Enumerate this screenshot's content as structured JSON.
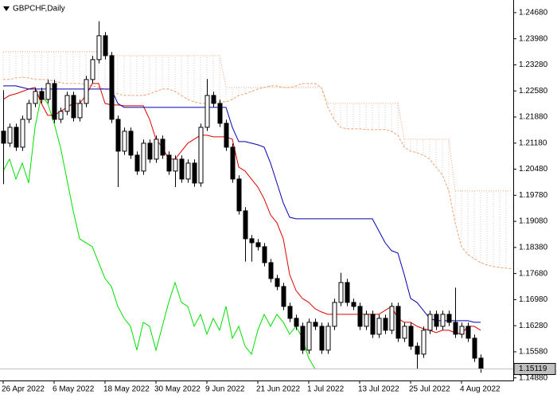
{
  "chart_data": {
    "type": "candlestick",
    "title": "GBPCHF,Daily",
    "categories": [
      "26 Apr 2022",
      null,
      null,
      null,
      null,
      null,
      null,
      null,
      "6 May 2022",
      null,
      null,
      null,
      null,
      null,
      null,
      null,
      "18 May 2022",
      null,
      null,
      null,
      null,
      null,
      null,
      null,
      "30 May 2022",
      null,
      null,
      null,
      null,
      null,
      null,
      null,
      "9 Jun 2022",
      null,
      null,
      null,
      null,
      null,
      null,
      null,
      "21 Jun 2022",
      null,
      null,
      null,
      null,
      null,
      null,
      null,
      "1 Jul 2022",
      null,
      null,
      null,
      null,
      null,
      null,
      null,
      "13 Jul 2022",
      null,
      null,
      null,
      null,
      null,
      null,
      null,
      "25 Jul 2022",
      null,
      null,
      null,
      null,
      null,
      null,
      null,
      "4 Aug 2022",
      null,
      null,
      null,
      null,
      null,
      null,
      null,
      null
    ],
    "open": [
      1.215,
      1.21177,
      1.21604,
      1.2107,
      1.21818,
      1.22245,
      1.22566,
      1.22352,
      1.22779,
      1.21818,
      1.22032,
      1.22459,
      1.21861,
      1.22245,
      1.22886,
      1.2342,
      1.24061,
      1.23527,
      1.21818,
      1.20964,
      1.21498,
      1.20857,
      1.2043,
      1.21177,
      1.2075,
      1.21284,
      1.20857,
      1.2043,
      1.2075,
      1.20216,
      1.20643,
      1.20109,
      1.21604,
      1.22459,
      1.22245,
      1.21711,
      1.2107,
      1.20216,
      1.19362,
      1.18614,
      1.18507,
      1.184,
      1.17973,
      1.17546,
      1.17332,
      1.16798,
      1.16478,
      1.16264,
      1.15624,
      1.16371,
      1.16264,
      1.15624,
      1.16264,
      1.16905,
      1.17439,
      1.16905,
      1.16798,
      1.16264,
      1.16585,
      1.16051,
      1.16478,
      1.16158,
      1.16798,
      1.15944,
      1.16264,
      1.1573,
      1.15517,
      1.16158,
      1.16585,
      1.16264,
      1.16585,
      1.16371,
      1.16051,
      1.16264,
      1.15944,
      1.1541,
      null,
      null,
      null,
      null,
      null
    ],
    "high": [
      1.226,
      1.21704,
      1.21704,
      1.21918,
      1.22345,
      1.22666,
      1.22666,
      1.22879,
      1.22879,
      1.22132,
      1.22559,
      1.22559,
      1.22345,
      1.22986,
      1.2352,
      1.2445,
      1.24161,
      1.23627,
      1.21918,
      1.21598,
      1.21598,
      1.20957,
      1.21277,
      1.21277,
      1.21384,
      1.21384,
      1.20957,
      1.2085,
      1.2085,
      1.20743,
      1.20743,
      1.21704,
      1.229,
      1.22559,
      1.22345,
      1.21811,
      1.2117,
      1.20316,
      1.19462,
      1.18714,
      1.18607,
      1.185,
      1.18073,
      1.17646,
      1.17432,
      1.16898,
      1.16578,
      1.16364,
      1.16471,
      1.16471,
      1.16364,
      1.16364,
      1.17005,
      1.177,
      1.17539,
      1.17005,
      1.16898,
      1.16685,
      1.16685,
      1.16578,
      1.16578,
      1.16898,
      1.16898,
      1.16364,
      1.16364,
      1.1583,
      1.16258,
      1.16685,
      1.16685,
      1.16685,
      1.16685,
      1.173,
      1.16364,
      1.16364,
      1.16044,
      1.1551,
      null,
      null,
      null,
      null,
      null
    ],
    "low": [
      1.20077,
      1.21077,
      1.2097,
      1.2097,
      1.21718,
      1.22145,
      1.22252,
      1.22252,
      1.21718,
      1.21718,
      1.21932,
      1.21761,
      1.21761,
      1.22145,
      1.22786,
      1.2332,
      1.23427,
      1.21718,
      1.2,
      1.20864,
      1.20757,
      1.2033,
      1.2033,
      1.2065,
      1.2065,
      1.20757,
      1.2033,
      1.2,
      1.20116,
      1.20116,
      1.20009,
      1.20009,
      1.21504,
      1.22145,
      1.21611,
      1.2097,
      1.20116,
      1.19262,
      1.18,
      1.18,
      1.183,
      1.17873,
      1.17446,
      1.17232,
      1.16698,
      1.16378,
      1.16164,
      1.15524,
      1.15524,
      1.16164,
      1.15524,
      1.15524,
      1.16164,
      1.16805,
      1.16805,
      1.16698,
      1.16164,
      1.16164,
      1.15951,
      1.15951,
      1.16058,
      1.16058,
      1.15844,
      1.15844,
      1.1563,
      1.15117,
      1.15417,
      1.16058,
      1.16164,
      1.16164,
      1.16271,
      1.15951,
      1.15951,
      1.15844,
      1.1531,
      1.15019,
      null,
      null,
      null,
      null,
      null
    ],
    "close": [
      1.21177,
      1.21604,
      1.2107,
      1.21818,
      1.22245,
      1.22566,
      1.22352,
      1.22779,
      1.21818,
      1.22032,
      1.22459,
      1.21861,
      1.22245,
      1.22886,
      1.2342,
      1.24061,
      1.23527,
      1.21818,
      1.20964,
      1.21498,
      1.20857,
      1.2043,
      1.21177,
      1.2075,
      1.21284,
      1.20857,
      1.2043,
      1.2075,
      1.20216,
      1.20643,
      1.20109,
      1.21604,
      1.22459,
      1.22245,
      1.21711,
      1.2107,
      1.20216,
      1.19362,
      1.18614,
      1.18507,
      1.184,
      1.17973,
      1.17546,
      1.17332,
      1.16798,
      1.16478,
      1.16264,
      1.15624,
      1.16371,
      1.16264,
      1.15624,
      1.16264,
      1.16905,
      1.17439,
      1.16905,
      1.16798,
      1.16264,
      1.16585,
      1.16051,
      1.16478,
      1.16158,
      1.16798,
      1.15944,
      1.16264,
      1.1573,
      1.15517,
      1.16158,
      1.16585,
      1.16264,
      1.16585,
      1.16371,
      1.16051,
      1.16264,
      1.15944,
      1.1541,
      1.15119,
      null,
      null,
      null,
      null,
      null
    ],
    "up_color": "#ffffff",
    "down_color": "#000000",
    "lines": [
      {
        "color": "#e00000",
        "values": [
          1.22352,
          1.22459,
          1.22501,
          1.22566,
          1.2263,
          1.22672,
          1.22245,
          1.21925,
          1.21925,
          1.22032,
          1.22138,
          1.22245,
          1.22245,
          1.22459,
          1.22779,
          1.22779,
          1.22245,
          1.22203,
          1.22203,
          1.22181,
          1.22181,
          1.22181,
          1.22181,
          1.21818,
          1.21284,
          1.2107,
          1.2075,
          1.2075,
          1.20964,
          1.21177,
          1.21284,
          1.21391,
          1.21391,
          1.21348,
          1.21348,
          1.21348,
          1.21284,
          1.20536,
          1.2043,
          1.20216,
          1.20002,
          1.19682,
          1.19255,
          1.19041,
          1.18614,
          1.17653,
          1.17226,
          1.17012,
          1.16905,
          1.16734,
          1.16649,
          1.16585,
          1.16585,
          1.16585,
          1.16585,
          1.16585,
          1.16585,
          1.16585,
          1.16585,
          1.16585,
          1.16692,
          1.16798,
          1.16478,
          1.16371,
          1.16371,
          1.16264,
          1.162,
          1.16158,
          1.16094,
          1.16158,
          1.16158,
          1.16094,
          1.16051,
          1.16264,
          1.16264,
          1.16158,
          null,
          null,
          null,
          null,
          null
        ]
      },
      {
        "color": "#0000b4",
        "values": [
          1.22715,
          1.22715,
          1.22715,
          1.22672,
          1.2263,
          1.2263,
          1.2263,
          1.2263,
          1.2263,
          1.2263,
          1.2263,
          1.2263,
          1.2263,
          1.2263,
          1.2263,
          1.2263,
          1.2263,
          1.2263,
          1.22245,
          1.22138,
          1.22138,
          1.22138,
          1.22138,
          1.22138,
          1.22138,
          1.22138,
          1.22138,
          1.22138,
          1.22138,
          1.22138,
          1.22138,
          1.22138,
          1.22138,
          1.22138,
          1.22138,
          1.22138,
          1.21604,
          1.2122,
          1.2122,
          1.21177,
          1.21135,
          1.2107,
          1.20643,
          1.20109,
          1.19575,
          1.19191,
          1.19148,
          1.19148,
          1.19148,
          1.19148,
          1.19148,
          1.19148,
          1.19148,
          1.19148,
          1.19148,
          1.19148,
          1.19148,
          1.19148,
          1.19148,
          1.18828,
          1.18507,
          1.18294,
          1.1823,
          1.17653,
          1.17012,
          1.16905,
          1.16692,
          1.16478,
          1.16414,
          1.16414,
          1.16414,
          1.16414,
          1.16414,
          1.16414,
          1.16371,
          1.16371,
          null,
          null,
          null,
          null,
          null
        ]
      }
    ],
    "chikou": {
      "color": "#00e000",
      "shift": 26
    },
    "cloud": {
      "color": "#f0a070",
      "hatch_color": "#d8c8c0",
      "a": [
        1.22886,
        1.22886,
        1.22929,
        1.2295,
        1.22929,
        1.22886,
        1.22886,
        1.22886,
        1.22843,
        1.22801,
        1.22779,
        1.22779,
        1.22779,
        1.22758,
        1.22715,
        1.22672,
        1.2263,
        1.22566,
        1.22501,
        1.22459,
        1.22459,
        1.22459,
        1.22459,
        1.22501,
        1.22566,
        1.2263,
        1.2263,
        1.22566,
        1.22459,
        1.22352,
        1.22288,
        1.22245,
        1.22245,
        1.22288,
        1.22288,
        1.22288,
        1.22352,
        1.22459,
        1.22501,
        1.22566,
        1.2263,
        1.22672,
        1.22715,
        1.22715,
        1.22672,
        1.22672,
        1.22715,
        1.22779,
        1.22779,
        1.22779,
        1.22672,
        1.22138,
        1.21818,
        1.21604,
        1.21562,
        1.21562,
        1.21562,
        1.2154,
        1.2154,
        1.2154,
        1.2154,
        1.21498,
        1.21391,
        1.2107,
        1.20964,
        1.20921,
        1.20857,
        1.2075,
        1.20536,
        1.20323,
        1.19896,
        1.19041,
        1.184,
        1.18187,
        1.1808,
        1.17973,
        1.17909,
        1.17866,
        1.17845,
        1.17824,
        1.17802
      ],
      "b": [
        1.23634,
        1.23634,
        1.23634,
        1.23634,
        1.23634,
        1.23634,
        1.23634,
        1.23634,
        1.23634,
        1.23634,
        1.23634,
        1.23634,
        1.23634,
        1.23634,
        1.23634,
        1.23634,
        1.23634,
        1.23527,
        1.23527,
        1.23527,
        1.23527,
        1.23527,
        1.23527,
        1.23527,
        1.23527,
        1.23527,
        1.23527,
        1.23527,
        1.23527,
        1.23527,
        1.23527,
        1.23527,
        1.23527,
        1.23527,
        1.23527,
        1.22672,
        1.22672,
        1.22672,
        1.22672,
        1.22672,
        1.22672,
        1.22672,
        1.22672,
        1.22672,
        1.22672,
        1.22672,
        1.22672,
        1.22672,
        1.22672,
        1.22672,
        1.22672,
        1.22245,
        1.22245,
        1.22245,
        1.22245,
        1.22245,
        1.22245,
        1.22245,
        1.22245,
        1.22245,
        1.22245,
        1.22245,
        1.22245,
        1.21284,
        1.21284,
        1.21284,
        1.21284,
        1.21284,
        1.21284,
        1.21284,
        1.21284,
        1.19896,
        1.19896,
        1.19896,
        1.19896,
        1.19896,
        1.19896,
        1.19896,
        1.19896,
        1.19896,
        1.19896
      ]
    },
    "ylim": [
      1.1481,
      1.2502
    ],
    "yticks": [
      {
        "value": 1.2468,
        "label": "1.24680"
      },
      {
        "value": 1.2398,
        "label": "1.23980"
      },
      {
        "value": 1.2328,
        "label": "1.23280"
      },
      {
        "value": 1.2258,
        "label": "1.22580"
      },
      {
        "value": 1.2188,
        "label": "1.21880"
      },
      {
        "value": 1.2118,
        "label": "1.21180"
      },
      {
        "value": 1.2048,
        "label": "1.20480"
      },
      {
        "value": 1.1978,
        "label": "1.19780"
      },
      {
        "value": 1.1908,
        "label": "1.19080"
      },
      {
        "value": 1.1838,
        "label": "1.18380"
      },
      {
        "value": 1.1768,
        "label": "1.17680"
      },
      {
        "value": 1.1698,
        "label": "1.16980"
      },
      {
        "value": 1.1628,
        "label": "1.16280"
      },
      {
        "value": 1.1558,
        "label": "1.15580"
      },
      {
        "value": 1.1488,
        "label": "1.14880"
      }
    ],
    "grid": false
  }
}
